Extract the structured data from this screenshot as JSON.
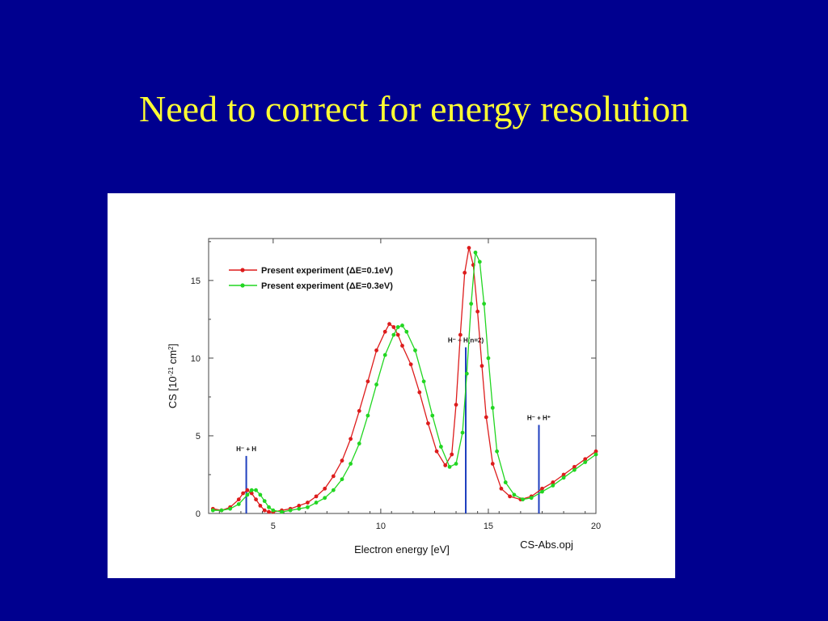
{
  "slide": {
    "title": "Need to correct for energy resolution",
    "background_color": "#00008f",
    "title_color": "#ffff33"
  },
  "chart_data": {
    "type": "line",
    "xlabel": "Electron energy [eV]",
    "ylabel": "CS [10",
    "ylabel_sup1": "-21",
    "ylabel_mid": " cm",
    "ylabel_sup2": "2",
    "ylabel_end": "]",
    "file_label": "CS-Abs.opj",
    "xlim": [
      2,
      20
    ],
    "ylim": [
      0,
      17.7
    ],
    "xticks": [
      5,
      10,
      15,
      20
    ],
    "yticks": [
      0,
      5,
      10,
      15
    ],
    "legend_position": "top-left",
    "series": [
      {
        "name": "Present experiment (ΔE=0.1eV)",
        "color": "#dd1c1c",
        "x": [
          2.2,
          2.6,
          3.0,
          3.4,
          3.6,
          3.8,
          4.0,
          4.2,
          4.4,
          4.6,
          4.8,
          5.0,
          5.4,
          5.8,
          6.2,
          6.6,
          7.0,
          7.4,
          7.8,
          8.2,
          8.6,
          9.0,
          9.4,
          9.8,
          10.2,
          10.4,
          10.6,
          10.8,
          11.0,
          11.4,
          11.8,
          12.2,
          12.6,
          13.0,
          13.3,
          13.5,
          13.7,
          13.9,
          14.1,
          14.3,
          14.5,
          14.7,
          14.9,
          15.2,
          15.6,
          16.0,
          16.5,
          17.0,
          17.5,
          18.0,
          18.5,
          19.0,
          19.5,
          20.0
        ],
        "values": [
          0.3,
          0.2,
          0.4,
          0.9,
          1.3,
          1.5,
          1.3,
          0.9,
          0.5,
          0.2,
          0.1,
          0.1,
          0.2,
          0.3,
          0.5,
          0.7,
          1.1,
          1.6,
          2.4,
          3.4,
          4.8,
          6.6,
          8.5,
          10.5,
          11.7,
          12.2,
          12.0,
          11.5,
          10.8,
          9.6,
          7.8,
          5.8,
          4.0,
          3.1,
          3.8,
          7.0,
          11.5,
          15.5,
          17.1,
          16.0,
          13.0,
          9.5,
          6.2,
          3.2,
          1.6,
          1.1,
          0.9,
          1.1,
          1.6,
          2.0,
          2.5,
          3.0,
          3.5,
          4.0
        ]
      },
      {
        "name": "Present experiment (ΔE=0.3eV)",
        "color": "#22d622",
        "x": [
          2.2,
          2.6,
          3.0,
          3.4,
          3.8,
          4.0,
          4.2,
          4.4,
          4.6,
          4.8,
          5.0,
          5.4,
          5.8,
          6.2,
          6.6,
          7.0,
          7.4,
          7.8,
          8.2,
          8.6,
          9.0,
          9.4,
          9.8,
          10.2,
          10.6,
          10.8,
          11.0,
          11.2,
          11.6,
          12.0,
          12.4,
          12.8,
          13.2,
          13.5,
          13.8,
          14.0,
          14.2,
          14.4,
          14.6,
          14.8,
          15.0,
          15.2,
          15.4,
          15.8,
          16.2,
          16.6,
          17.0,
          17.5,
          18.0,
          18.5,
          19.0,
          19.5,
          20.0
        ],
        "values": [
          0.2,
          0.2,
          0.3,
          0.6,
          1.2,
          1.5,
          1.5,
          1.2,
          0.8,
          0.4,
          0.2,
          0.1,
          0.2,
          0.3,
          0.4,
          0.7,
          1.0,
          1.5,
          2.2,
          3.2,
          4.5,
          6.3,
          8.3,
          10.2,
          11.5,
          12.0,
          12.1,
          11.7,
          10.5,
          8.5,
          6.3,
          4.3,
          3.0,
          3.2,
          5.2,
          9.0,
          13.5,
          16.8,
          16.2,
          13.5,
          10.0,
          6.8,
          4.0,
          2.0,
          1.2,
          0.9,
          1.0,
          1.4,
          1.8,
          2.3,
          2.8,
          3.3,
          3.8
        ]
      }
    ],
    "markers": [
      {
        "label": "H⁻ + H",
        "x": 3.75,
        "height": 3.7,
        "color": "#1f3fbf"
      },
      {
        "label": "H⁻ + H(n=2)",
        "x": 13.95,
        "height": 10.7,
        "color": "#1f3fbf"
      },
      {
        "label": "H⁻ + H⁺",
        "x": 17.35,
        "height": 5.7,
        "color": "#1f3fbf"
      }
    ]
  }
}
